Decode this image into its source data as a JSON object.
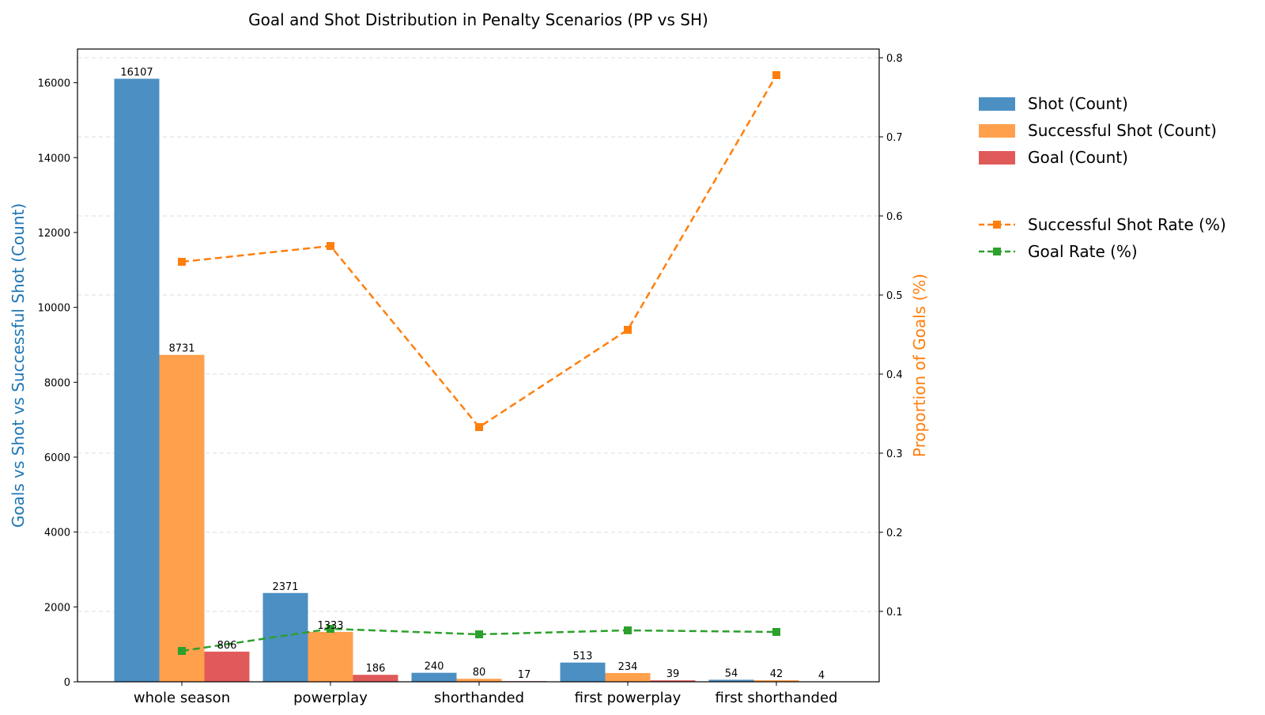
{
  "chart_data": {
    "type": "bar",
    "title": "Goal and Shot Distribution in Penalty Scenarios (PP vs SH)",
    "categories": [
      "whole season",
      "powerplay",
      "shorthanded",
      "first powerplay",
      "first shorthanded"
    ],
    "ylabel": "Goals vs Shot vs Successful Shot (Count)",
    "ylim": [
      0,
      16900
    ],
    "yticks": [
      0,
      2000,
      4000,
      6000,
      8000,
      10000,
      12000,
      14000,
      16000
    ],
    "y2label": "Proportion of Goals (%)",
    "y2lim": [
      0.011,
      0.811
    ],
    "y2ticks": [
      0.1,
      0.2,
      0.3,
      0.4,
      0.5,
      0.6,
      0.7,
      0.8
    ],
    "grid": true,
    "legend_placement": "right",
    "bar_series": [
      {
        "name": "Shot (Count)",
        "color": "#4c8fc3",
        "values": [
          16107,
          2371,
          240,
          513,
          54
        ],
        "labels": [
          "16107",
          "2371",
          "240",
          "513",
          "54"
        ]
      },
      {
        "name": "Successful Shot (Count)",
        "color": "#ffa04d",
        "values": [
          8731,
          1333,
          80,
          234,
          42
        ],
        "labels": [
          "8731",
          "1333",
          "80",
          "234",
          "42"
        ]
      },
      {
        "name": "Goal (Count)",
        "color": "#e05a5a",
        "values": [
          806,
          186,
          17,
          39,
          4
        ],
        "labels": [
          "806",
          "186",
          "17",
          "39",
          "4"
        ]
      }
    ],
    "line_series": [
      {
        "name": "Successful Shot Rate (%)",
        "color": "#ff7f0e",
        "values": [
          0.542,
          0.562,
          0.333,
          0.456,
          0.778
        ]
      },
      {
        "name": "Goal Rate (%)",
        "color": "#2ca02c",
        "values": [
          0.05,
          0.078,
          0.071,
          0.076,
          0.074
        ]
      }
    ],
    "colors": {
      "left_axis_label": "#1f77b4",
      "right_axis_label": "#ff7f0e",
      "grid": "#dddddd"
    }
  }
}
